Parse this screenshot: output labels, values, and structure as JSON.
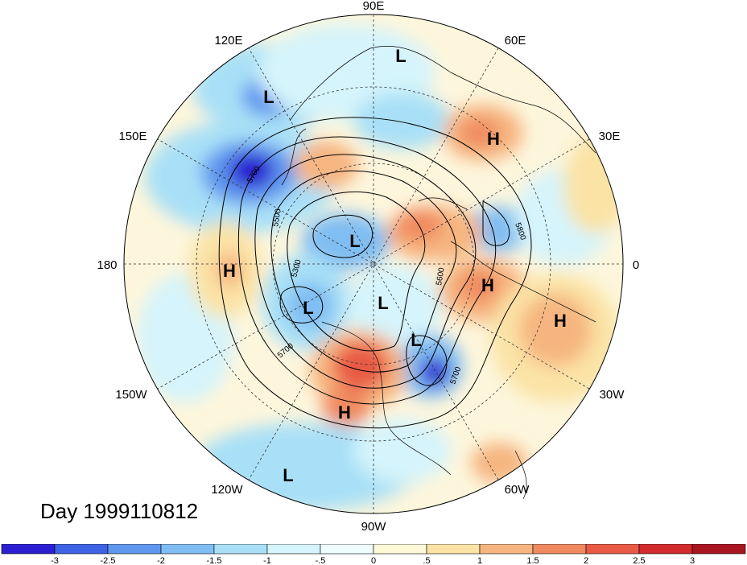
{
  "map": {
    "projection": "polar-stereographic-north",
    "shaded_field_colors": {
      "neg_3": "#2b1fd1",
      "neg_2_5": "#3f63e6",
      "neg_2": "#5f97ee",
      "neg_1_5": "#80bdf2",
      "neg_1": "#a9e0f7",
      "neg_0_5": "#d5f4fb",
      "pos_0": "#fdf8d8",
      "pos_0_5": "#fbe3a6",
      "pos_1": "#f6b580",
      "pos_1_5": "#f08a61",
      "pos_2": "#e85a45",
      "pos_2_5": "#d22a2d",
      "pos_3": "#a8141f"
    },
    "longitude_labels": [
      "90E",
      "60E",
      "30E",
      "0",
      "30W",
      "60W",
      "90W",
      "120W",
      "150W",
      "180",
      "150E",
      "120E"
    ],
    "contour_labels": [
      "5700",
      "5500",
      "5300",
      "5800",
      "5600",
      "5700",
      "5700"
    ],
    "pressure_centers": [
      {
        "id": "L-north",
        "label": "L"
      },
      {
        "id": "L-east-asia",
        "label": "L"
      },
      {
        "id": "H-siberia",
        "label": "H"
      },
      {
        "id": "L-arctic",
        "label": "L"
      },
      {
        "id": "H-pacific",
        "label": "H"
      },
      {
        "id": "L-alaska",
        "label": "L"
      },
      {
        "id": "L-hudson",
        "label": "L"
      },
      {
        "id": "H-europe",
        "label": "H"
      },
      {
        "id": "H-atlantic",
        "label": "H"
      },
      {
        "id": "L-labrador",
        "label": "L"
      },
      {
        "id": "H-usa",
        "label": "H"
      },
      {
        "id": "L-pacific-south",
        "label": "L"
      }
    ]
  },
  "day_label": "Day 1999110812",
  "colorbar": {
    "ticks": [
      "-3",
      "-2.5",
      "-2",
      "-1.5",
      "-1",
      "-.5",
      "0",
      ".5",
      "1",
      "1.5",
      "2",
      "2.5",
      "3"
    ],
    "colors": [
      "#2b1fd1",
      "#3f63e6",
      "#5f97ee",
      "#80bdf2",
      "#a9e0f7",
      "#d5f4fb",
      "#eefcff",
      "#fdf8d8",
      "#fbe3a6",
      "#f6b580",
      "#f08a61",
      "#e85a45",
      "#d22a2d",
      "#a8141f"
    ]
  }
}
